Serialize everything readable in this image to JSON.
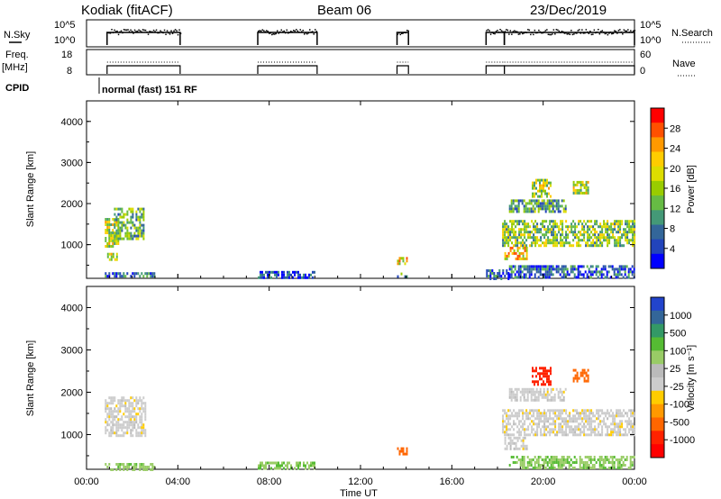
{
  "header": {
    "title": "Kodiak (fitACF)",
    "beam": "Beam 06",
    "date": "23/Dec/2019"
  },
  "top_panels": {
    "nsky": {
      "left_label": "N.Sky",
      "left_ticks": [
        "10^5",
        "10^0"
      ],
      "right_ticks": [
        "10^5",
        "10^0"
      ],
      "right_label": "N.Search"
    },
    "freq": {
      "left_label_line1": "Freq.",
      "left_label_line2": "[MHz]",
      "left_ticks": [
        "18",
        "8"
      ],
      "right_ticks": [
        "60",
        "0"
      ],
      "right_label": "Nave"
    },
    "cpid": {
      "label": "CPID",
      "mode": "normal (fast) 151 RF"
    }
  },
  "x_axis": {
    "ticks": [
      "00:00",
      "04:00",
      "08:00",
      "12:00",
      "16:00",
      "20:00",
      "00:00"
    ],
    "label": "Time UT"
  },
  "colorbars": {
    "power": {
      "label": "Power [dB]",
      "ticks": [
        "28",
        "24",
        "20",
        "16",
        "12",
        "8",
        "4"
      ],
      "colors": [
        "#ff0000",
        "#ff5000",
        "#ff9900",
        "#ffcc00",
        "#dddd00",
        "#99cc00",
        "#66bb44",
        "#449977",
        "#336699",
        "#2244bb",
        "#0000ff"
      ]
    },
    "velocity": {
      "label": "Velocity [m s⁻¹]",
      "ticks": [
        "1000",
        "500",
        "100",
        "25",
        "-25",
        "-100",
        "-500",
        "-1000"
      ],
      "colors": [
        "#2244cc",
        "#336699",
        "#339966",
        "#55bb33",
        "#99cc66",
        "#bbbbbb",
        "#cccccc",
        "#ffcc00",
        "#ff9900",
        "#ff6600",
        "#ff2200",
        "#ff0000"
      ]
    }
  },
  "chart_data": [
    {
      "type": "heatmap",
      "title": "Power",
      "ylabel": "Slant Range [km]",
      "xlabel": "",
      "xlim_hours": [
        0,
        24
      ],
      "ylim": [
        180,
        4500
      ],
      "yticks": [
        "1000",
        "2000",
        "3000",
        "4000"
      ],
      "regions": [
        {
          "t0": 0.8,
          "t1": 1.4,
          "r0": 950,
          "r1": 1650,
          "value": 18
        },
        {
          "t0": 1.2,
          "t1": 2.5,
          "r0": 1150,
          "r1": 1900,
          "value": 14
        },
        {
          "t0": 0.9,
          "t1": 1.3,
          "r0": 650,
          "r1": 800,
          "value": 20
        },
        {
          "t0": 0.8,
          "t1": 3.0,
          "r0": 200,
          "r1": 330,
          "value": 8
        },
        {
          "t0": 7.5,
          "t1": 10.0,
          "r0": 200,
          "r1": 360,
          "value": 6
        },
        {
          "t0": 13.6,
          "t1": 14.0,
          "r0": 520,
          "r1": 700,
          "value": 22
        },
        {
          "t0": 13.6,
          "t1": 14.0,
          "r0": 200,
          "r1": 320,
          "value": 10
        },
        {
          "t0": 17.5,
          "t1": 18.5,
          "r0": 200,
          "r1": 400,
          "value": 8
        },
        {
          "t0": 18.2,
          "t1": 24.0,
          "r0": 1000,
          "r1": 1600,
          "value": 16
        },
        {
          "t0": 18.3,
          "t1": 19.3,
          "r0": 650,
          "r1": 950,
          "value": 22
        },
        {
          "t0": 19.5,
          "t1": 20.3,
          "r0": 2200,
          "r1": 2600,
          "value": 18
        },
        {
          "t0": 21.3,
          "t1": 22.0,
          "r0": 2250,
          "r1": 2550,
          "value": 18
        },
        {
          "t0": 18.5,
          "t1": 21.0,
          "r0": 1800,
          "r1": 2100,
          "value": 12
        },
        {
          "t0": 18.5,
          "t1": 24.0,
          "r0": 200,
          "r1": 500,
          "value": 8
        }
      ]
    },
    {
      "type": "heatmap",
      "title": "Velocity",
      "ylabel": "Slant Range [km]",
      "xlabel": "Time UT",
      "xlim_hours": [
        0,
        24
      ],
      "ylim": [
        180,
        4500
      ],
      "yticks": [
        "1000",
        "2000",
        "3000",
        "4000"
      ],
      "regions": [
        {
          "t0": 0.8,
          "t1": 2.6,
          "r0": 950,
          "r1": 1900,
          "value": 0
        },
        {
          "t0": 0.8,
          "t1": 3.0,
          "r0": 200,
          "r1": 330,
          "value": 80
        },
        {
          "t0": 7.5,
          "t1": 10.0,
          "r0": 200,
          "r1": 360,
          "value": 90
        },
        {
          "t0": 13.6,
          "t1": 14.0,
          "r0": 520,
          "r1": 700,
          "value": -150
        },
        {
          "t0": 18.2,
          "t1": 24.0,
          "r0": 1000,
          "r1": 1600,
          "value": 0
        },
        {
          "t0": 18.3,
          "t1": 19.3,
          "r0": 650,
          "r1": 950,
          "value": 0
        },
        {
          "t0": 19.5,
          "t1": 20.3,
          "r0": 2200,
          "r1": 2600,
          "value": -300
        },
        {
          "t0": 21.3,
          "t1": 22.0,
          "r0": 2250,
          "r1": 2550,
          "value": -150
        },
        {
          "t0": 18.5,
          "t1": 21.0,
          "r0": 1800,
          "r1": 2100,
          "value": 0
        },
        {
          "t0": 18.5,
          "t1": 24.0,
          "r0": 200,
          "r1": 500,
          "value": 90
        }
      ]
    }
  ],
  "operation_intervals_hours": [
    [
      0.9,
      4.1
    ],
    [
      7.5,
      10.1
    ],
    [
      13.6,
      14.1
    ],
    [
      17.5,
      18.3
    ],
    [
      18.3,
      24.0
    ]
  ]
}
